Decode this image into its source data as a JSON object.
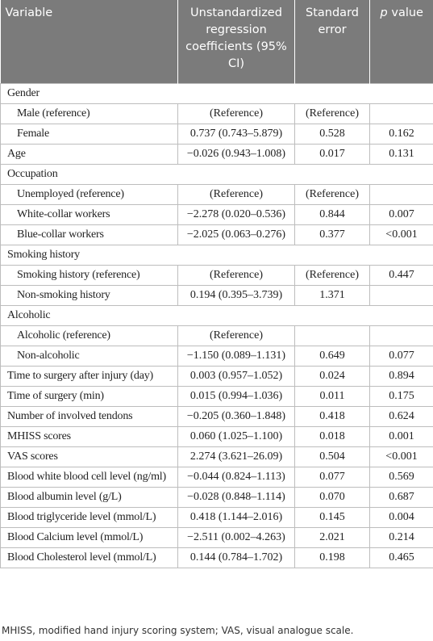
{
  "table": {
    "header": [
      "Variable",
      "Unstandardized regression coefficients (95% CI)",
      "Standard error",
      [
        "p",
        "value"
      ]
    ],
    "sections": [
      {
        "title": "Gender",
        "rows": [
          [
            "Male (reference)",
            "(Reference)",
            "(Reference)",
            null
          ],
          [
            "Female",
            "0.737 (0.743–5.879)",
            "0.528",
            "0.162"
          ]
        ]
      },
      {
        "row": [
          "Age",
          "−0.026 (0.943–1.008)",
          "0.017",
          "0.131"
        ]
      },
      {
        "title": "Occupation",
        "rows": [
          [
            "Unemployed (reference)",
            "(Reference)",
            "(Reference)",
            null
          ],
          [
            "White-collar workers",
            "−2.278 (0.020–0.536)",
            "0.844",
            "0.007"
          ],
          [
            "Blue-collar workers",
            "−2.025 (0.063–0.276)",
            "0.377",
            "<0.001"
          ]
        ]
      },
      {
        "title": "Smoking history",
        "rows": [
          [
            "Smoking history (reference)",
            "(Reference)",
            "(Reference)",
            "0.447"
          ],
          [
            "Non-smoking history",
            "0.194 (0.395–3.739)",
            "1.371",
            null
          ]
        ]
      },
      {
        "title": "Alcoholic",
        "rows": [
          [
            "Alcoholic (reference)",
            "(Reference)",
            null,
            null
          ],
          [
            "Non-alcoholic",
            "−1.150 (0.089–1.131)",
            "0.649",
            "0.077"
          ]
        ]
      },
      {
        "row": [
          "Time to surgery after injury (day)",
          "0.003 (0.957–1.052)",
          "0.024",
          "0.894"
        ]
      },
      {
        "row": [
          "Time of surgery (min)",
          "0.015 (0.994–1.036)",
          "0.011",
          "0.175"
        ]
      },
      {
        "row": [
          "Number of involved tendons",
          "−0.205 (0.360–1.848)",
          "0.418",
          "0.624"
        ]
      },
      {
        "row": [
          "MHISS scores",
          "0.060 (1.025–1.100)",
          "0.018",
          "0.001"
        ]
      },
      {
        "row": [
          "VAS scores",
          "2.274 (3.621–26.09)",
          "0.504",
          "<0.001"
        ]
      },
      {
        "row": [
          "Blood white blood cell level (ng/ml)",
          "−0.044 (0.824–1.113)",
          "0.077",
          "0.569"
        ]
      },
      {
        "row": [
          "Blood albumin level (g/L)",
          "−0.028 (0.848–1.114)",
          "0.070",
          "0.687"
        ]
      },
      {
        "row": [
          "Blood triglyceride level (mmol/L)",
          "0.418 (1.144–2.016)",
          "0.145",
          "0.004"
        ]
      },
      {
        "row": [
          "Blood Calcium level (mmol/L)",
          "−2.511 (0.002–4.263)",
          "2.021",
          "0.214"
        ]
      },
      {
        "row": [
          "Blood Cholesterol level (mmol/L)",
          "0.144 (0.784–1.702)",
          "0.198",
          "0.465"
        ]
      }
    ],
    "footnote": "MHISS, modified hand injury scoring system; VAS, visual analogue scale."
  }
}
